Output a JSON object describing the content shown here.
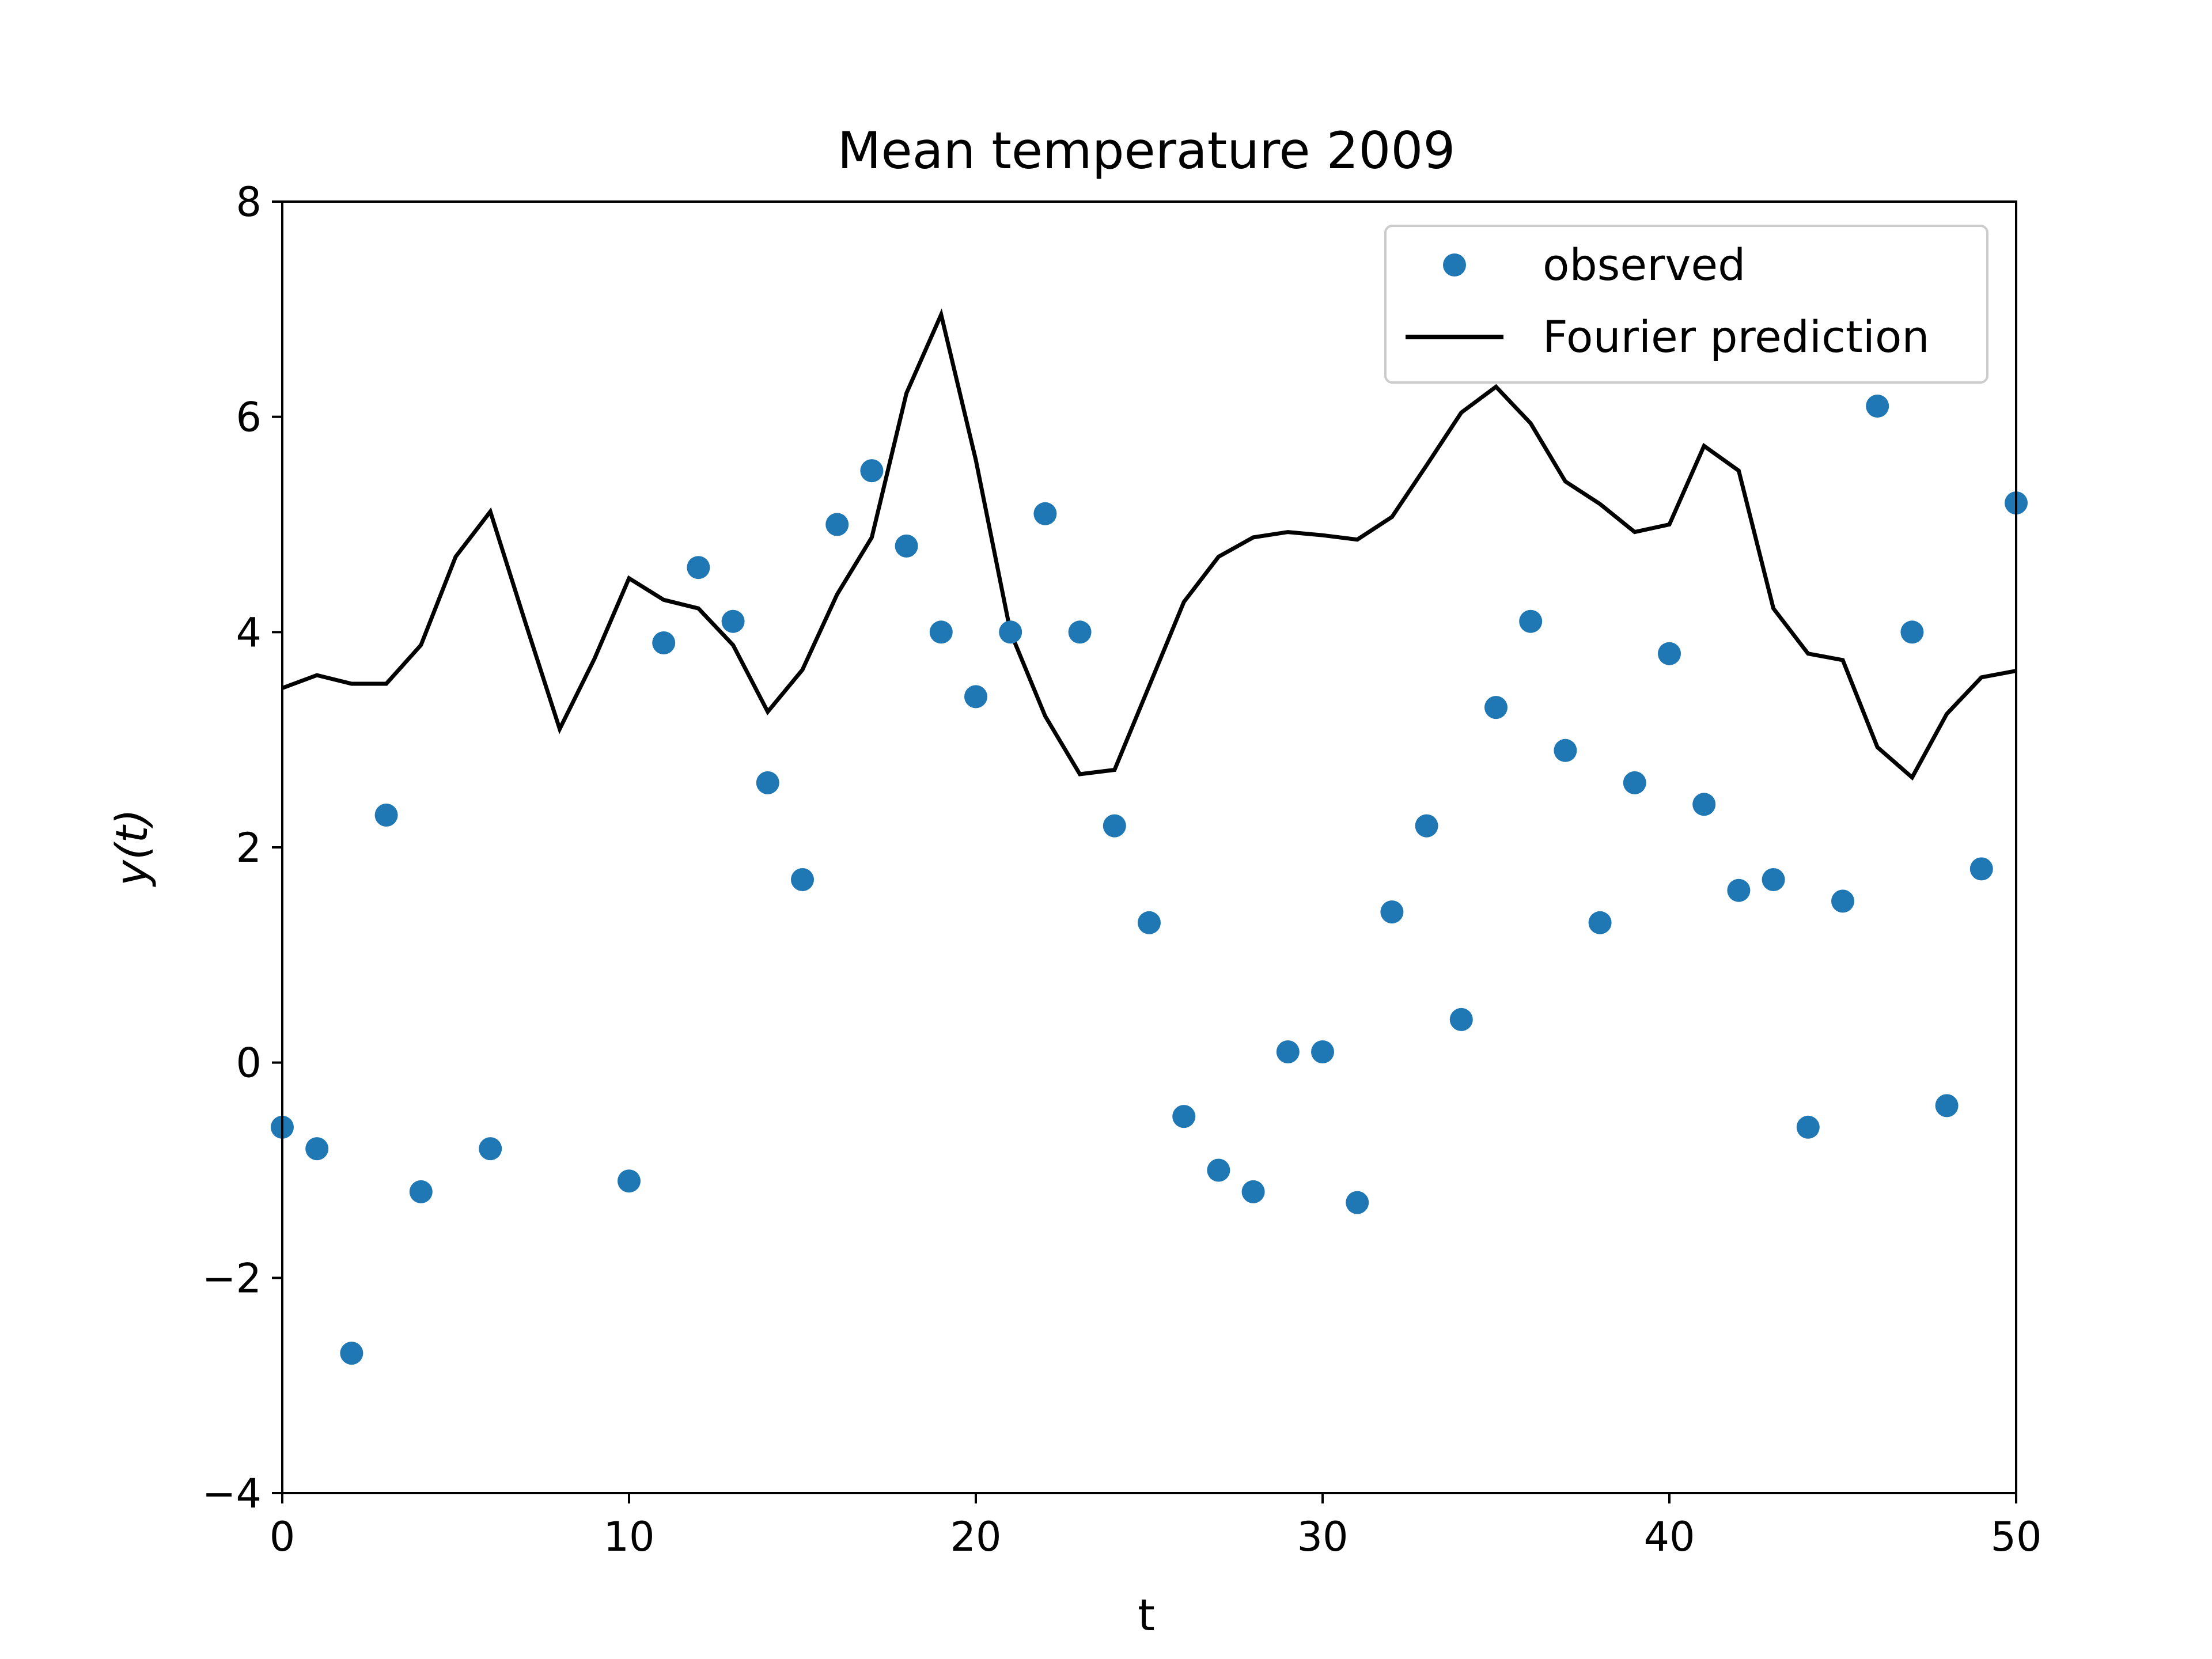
{
  "chart_data": {
    "type": "scatter",
    "title": "Mean temperature 2009",
    "xlabel": "t",
    "ylabel": "y(t)",
    "xlim": [
      0,
      50
    ],
    "ylim": [
      -4,
      8
    ],
    "xticks": [
      0,
      10,
      20,
      30,
      40,
      50
    ],
    "yticks": [
      -4,
      -2,
      0,
      2,
      4,
      6,
      8
    ],
    "xtick_labels": [
      "0",
      "10",
      "20",
      "30",
      "40",
      "50"
    ],
    "ytick_labels": [
      "−4",
      "−2",
      "0",
      "2",
      "4",
      "6",
      "8"
    ],
    "grid": false,
    "legend_position": "top-right",
    "series": [
      {
        "name": "observed",
        "kind": "scatter",
        "color": "#1f77b4",
        "x": [
          0,
          1,
          2,
          3,
          4,
          6,
          10,
          11,
          12,
          13,
          14,
          15,
          16,
          17,
          18,
          19,
          20,
          21,
          22,
          23,
          24,
          25,
          26,
          27,
          28,
          29,
          30,
          31,
          32,
          33,
          34,
          35,
          36,
          37,
          38,
          39,
          40,
          41,
          42,
          43,
          44,
          45,
          46,
          47,
          48,
          49,
          50
        ],
        "y": [
          -0.6,
          -0.8,
          -2.7,
          2.3,
          -1.2,
          -0.8,
          -1.1,
          3.9,
          4.6,
          4.1,
          2.6,
          1.7,
          5.0,
          5.5,
          4.8,
          4.0,
          3.4,
          4.0,
          5.1,
          4.0,
          2.2,
          1.3,
          -0.5,
          -1.0,
          -1.2,
          0.1,
          0.1,
          -1.3,
          1.4,
          2.2,
          0.4,
          3.3,
          4.1,
          2.9,
          1.3,
          2.6,
          3.8,
          2.4,
          1.6,
          1.7,
          -0.6,
          1.5,
          6.1,
          4.0,
          -0.4,
          1.8,
          5.2
        ]
      },
      {
        "name": "Fourier prediction",
        "kind": "line",
        "color": "#000000",
        "x": [
          0,
          1,
          2,
          3,
          4,
          5,
          6,
          7,
          8,
          9,
          10,
          11,
          12,
          13,
          14,
          15,
          16,
          17,
          18,
          19,
          20,
          21,
          22,
          23,
          24,
          25,
          26,
          27,
          28,
          29,
          30,
          31,
          32,
          33,
          34,
          35,
          36,
          37,
          38,
          39,
          40,
          41,
          42,
          43,
          44,
          45,
          46,
          47,
          48,
          49,
          50
        ],
        "y": [
          3.48,
          3.6,
          3.52,
          3.52,
          3.88,
          4.7,
          5.12,
          4.1,
          3.1,
          3.75,
          4.5,
          4.3,
          4.22,
          3.88,
          3.26,
          3.65,
          4.35,
          4.88,
          6.22,
          6.95,
          5.6,
          4.0,
          3.22,
          2.68,
          2.72,
          3.5,
          4.28,
          4.7,
          4.88,
          4.93,
          4.9,
          4.86,
          5.07,
          5.55,
          6.04,
          6.28,
          5.94,
          5.4,
          5.19,
          4.93,
          5.0,
          5.73,
          5.5,
          4.22,
          3.8,
          3.74,
          2.93,
          2.65,
          3.24,
          3.58,
          3.64
        ]
      }
    ]
  }
}
